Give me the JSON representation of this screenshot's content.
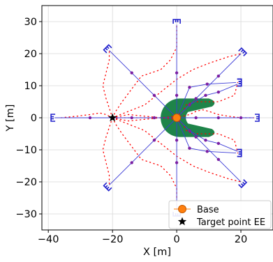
{
  "chart_data": {
    "type": "scatter",
    "title": "",
    "xlabel": "X [m]",
    "ylabel": "Y [m]",
    "xlim": [
      -42,
      30
    ],
    "ylim": [
      -35,
      35
    ],
    "xticks": [
      -40,
      -20,
      0,
      20
    ],
    "yticks": [
      -30,
      -20,
      -10,
      0,
      10,
      20,
      30
    ],
    "xtick_labels": [
      "−40",
      "−20",
      "0",
      "20"
    ],
    "ytick_labels": [
      "−30",
      "−20",
      "−10",
      "0",
      "10",
      "20",
      "30"
    ],
    "grid": true,
    "legend_position": "lower-right",
    "legend": [
      {
        "label": "Base",
        "marker": "circle",
        "color": "#ff7f0e"
      },
      {
        "label": "Target point EE",
        "marker": "star",
        "color": "#000000"
      }
    ],
    "colors": {
      "arm": "#3b3bd6",
      "joint": "#7b1fa2",
      "gripper": "#1f1fcc",
      "trajectory": "#ff0000",
      "obstacle": "#1e8449",
      "base": "#ff7f0e",
      "target": "#000000"
    },
    "base": {
      "x": 0,
      "y": 0
    },
    "target": {
      "x": -20,
      "y": 0
    },
    "obstacle": {
      "type": "c-shape",
      "center": {
        "x": 1,
        "y": 0
      },
      "outer_radius": 6,
      "opening": "right",
      "arm_tips": [
        {
          "x": 12,
          "y": 4
        },
        {
          "x": 12,
          "y": -4
        }
      ]
    },
    "arms": [
      {
        "joints": [
          [
            0,
            0
          ],
          [
            4,
            9.5
          ],
          [
            9.5,
            10.5
          ],
          [
            18.5,
            11
          ]
        ],
        "gripper": [
          19.5,
          11
        ],
        "direction": "right"
      },
      {
        "joints": [
          [
            0,
            0
          ],
          [
            4,
            -9.5
          ],
          [
            9.5,
            -10.5
          ],
          [
            18.5,
            -11
          ]
        ],
        "gripper": [
          19.5,
          -11
        ],
        "direction": "right"
      },
      {
        "joints": [
          [
            0,
            0
          ],
          [
            6,
            6
          ],
          [
            13,
            13
          ],
          [
            20,
            20
          ]
        ],
        "gripper": [
          20.5,
          20.5
        ],
        "direction": "upright"
      },
      {
        "joints": [
          [
            0,
            0
          ],
          [
            6,
            -6
          ],
          [
            13,
            -13
          ],
          [
            20,
            -20
          ]
        ],
        "gripper": [
          20.5,
          -20.5
        ],
        "direction": "downright"
      },
      {
        "joints": [
          [
            0,
            0
          ],
          [
            -7,
            7
          ],
          [
            -14,
            14
          ],
          [
            -21,
            21
          ]
        ],
        "gripper": [
          -21.5,
          21.5
        ],
        "direction": "upleft"
      },
      {
        "joints": [
          [
            0,
            0
          ],
          [
            -7,
            -7
          ],
          [
            -14,
            -14
          ],
          [
            -21,
            -21
          ]
        ],
        "gripper": [
          -21.5,
          -21.5
        ],
        "direction": "downleft"
      },
      {
        "joints": [
          [
            0,
            0
          ],
          [
            0,
            7
          ],
          [
            0,
            14
          ],
          [
            0,
            29
          ]
        ],
        "gripper": [
          0,
          30
        ],
        "direction": "up"
      },
      {
        "joints": [
          [
            0,
            0
          ],
          [
            0,
            -7
          ],
          [
            0,
            -14
          ],
          [
            0,
            -29
          ]
        ],
        "gripper": [
          0,
          -30
        ],
        "direction": "down"
      },
      {
        "joints": [
          [
            0,
            0
          ],
          [
            -7,
            0
          ],
          [
            -14,
            0
          ],
          [
            -27,
            0
          ],
          [
            -38,
            0
          ]
        ],
        "gripper": [
          -38.5,
          0
        ],
        "direction": "left"
      },
      {
        "joints": [
          [
            0,
            0
          ],
          [
            6,
            0
          ],
          [
            13,
            0
          ],
          [
            20,
            0
          ],
          [
            24,
            0
          ]
        ],
        "gripper": [
          25,
          0
        ],
        "direction": "right"
      },
      {
        "joints": [
          [
            0,
            0
          ],
          [
            4,
            4
          ],
          [
            9,
            7
          ],
          [
            13,
            8
          ],
          [
            19,
            10.5
          ]
        ],
        "gripper": [
          19.5,
          11
        ],
        "direction": "right"
      },
      {
        "joints": [
          [
            0,
            0
          ],
          [
            4,
            -4
          ],
          [
            9,
            -7
          ],
          [
            13,
            -8
          ],
          [
            19,
            -10.5
          ]
        ],
        "gripper": [
          19.5,
          -11
        ],
        "direction": "right"
      }
    ],
    "trajectories": [
      [
        [
          -20,
          0
        ],
        [
          -19,
          2
        ],
        [
          -17,
          5
        ],
        [
          -14,
          9
        ],
        [
          -11,
          13
        ],
        [
          -8,
          14
        ],
        [
          -5,
          15
        ],
        [
          -2,
          18
        ],
        [
          0,
          22
        ],
        [
          0,
          29
        ]
      ],
      [
        [
          -20,
          0
        ],
        [
          -19,
          -2
        ],
        [
          -17,
          -5
        ],
        [
          -14,
          -9
        ],
        [
          -11,
          -13
        ],
        [
          -8,
          -14
        ],
        [
          -5,
          -15
        ],
        [
          -2,
          -18
        ],
        [
          0,
          -22
        ],
        [
          0,
          -29
        ]
      ],
      [
        [
          -20,
          0
        ],
        [
          -21,
          3
        ],
        [
          -22,
          6
        ],
        [
          -23,
          10
        ],
        [
          -22,
          14
        ],
        [
          -21,
          18
        ],
        [
          -21,
          21
        ]
      ],
      [
        [
          -20,
          0
        ],
        [
          -21,
          -3
        ],
        [
          -22,
          -6
        ],
        [
          -23,
          -10
        ],
        [
          -22,
          -14
        ],
        [
          -21,
          -18
        ],
        [
          -21,
          -21
        ]
      ],
      [
        [
          -20,
          0
        ],
        [
          -22,
          1
        ],
        [
          -24,
          1.5
        ],
        [
          -27,
          1
        ],
        [
          -31,
          0.5
        ],
        [
          -36,
          0
        ]
      ],
      [
        [
          -20,
          0
        ],
        [
          -15,
          2
        ],
        [
          -10,
          4
        ],
        [
          -5,
          8
        ],
        [
          0,
          12
        ],
        [
          5,
          15
        ],
        [
          10,
          17
        ],
        [
          16,
          19
        ],
        [
          20,
          20
        ]
      ],
      [
        [
          -20,
          0
        ],
        [
          -15,
          -2
        ],
        [
          -10,
          -4
        ],
        [
          -5,
          -8
        ],
        [
          0,
          -12
        ],
        [
          5,
          -15
        ],
        [
          10,
          -17
        ],
        [
          16,
          -19
        ],
        [
          20,
          -20
        ]
      ],
      [
        [
          -20,
          0
        ],
        [
          -15,
          1
        ],
        [
          -10,
          0.5
        ],
        [
          -5,
          0
        ],
        [
          0,
          -0.5
        ],
        [
          2,
          -2
        ],
        [
          3,
          -4
        ],
        [
          5,
          -5
        ],
        [
          9,
          -5
        ],
        [
          13,
          -5
        ],
        [
          18,
          -7
        ],
        [
          19,
          -11
        ]
      ],
      [
        [
          -20,
          0
        ],
        [
          -15,
          -1
        ],
        [
          -10,
          -0.5
        ],
        [
          -5,
          0
        ],
        [
          0,
          0.5
        ],
        [
          2,
          2
        ],
        [
          3,
          4
        ],
        [
          5,
          5
        ],
        [
          9,
          5
        ],
        [
          13,
          5
        ],
        [
          18,
          7
        ],
        [
          19,
          11
        ]
      ],
      [
        [
          -20,
          0
        ],
        [
          -16,
          0
        ],
        [
          -12,
          0
        ],
        [
          -8,
          0
        ],
        [
          -4,
          0
        ],
        [
          0,
          0
        ],
        [
          4,
          1
        ],
        [
          6,
          2
        ],
        [
          8,
          2.5
        ],
        [
          10,
          2
        ],
        [
          13,
          1
        ],
        [
          16,
          0.5
        ],
        [
          20,
          0
        ],
        [
          24,
          0
        ]
      ]
    ]
  }
}
